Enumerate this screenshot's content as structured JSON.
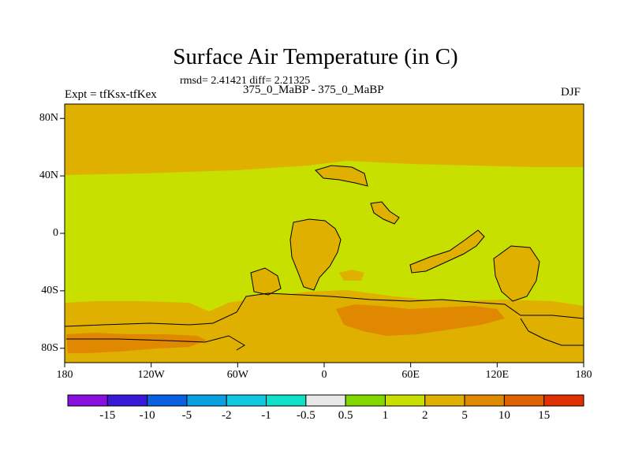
{
  "title": "Surface Air Temperature (in C)",
  "stats": "rmsd= 2.41421 diff= 2.21325",
  "experiment_label": "Expt = tfKsx-tfKex",
  "center_label": "375_0_MaBP - 375_0_MaBP",
  "season": "DJF",
  "map": {
    "projection": "cylindrical equidistant",
    "lon_range": [
      -180,
      180
    ],
    "lat_range": [
      -90,
      90
    ],
    "x_ticks": [
      "180",
      "120W",
      "60W",
      "0",
      "60E",
      "120E",
      "180"
    ],
    "y_ticks": [
      "80N",
      "40N",
      "0",
      "40S",
      "80S"
    ],
    "colors": {
      "band_1_2": "#c8e000",
      "band_2_5": "#e0b000",
      "band_5_10": "#e08800",
      "band_10_15": "#e06000"
    }
  },
  "colorbar": {
    "labels": [
      "-15",
      "-10",
      "-5",
      "-2",
      "-1",
      "-0.5",
      "0.5",
      "1",
      "2",
      "5",
      "10",
      "15"
    ],
    "colors": [
      "#8a10e0",
      "#3a18d8",
      "#0a60e0",
      "#08a0e0",
      "#10c8e0",
      "#10e0c8",
      "#e8e8e8",
      "#80d800",
      "#c8e000",
      "#e0b000",
      "#e08800",
      "#e06000",
      "#e03000"
    ]
  }
}
